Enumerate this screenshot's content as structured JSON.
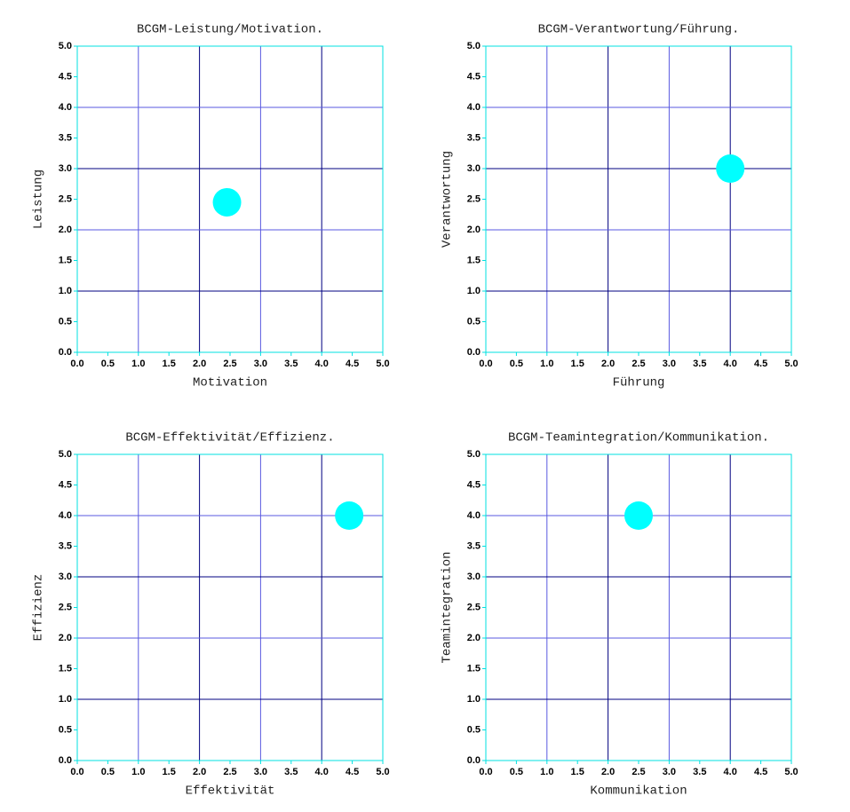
{
  "chart_data": [
    {
      "type": "scatter",
      "title": "BCGM-Leistung/Motivation.",
      "x_label": "Motivation",
      "y_label": "Leistung",
      "x": [
        2.45
      ],
      "values": [
        2.45
      ],
      "color": "#00ffff",
      "frame_color": "#00e0e0",
      "grid": true,
      "xlim": [
        0,
        5
      ],
      "ylim": [
        0,
        5
      ],
      "xticks": [
        {
          "value": 0,
          "label": "0.0"
        },
        {
          "value": 0.5,
          "label": "0.5"
        },
        {
          "value": 1,
          "label": "1.0"
        },
        {
          "value": 1.5,
          "label": "1.5"
        },
        {
          "value": 2,
          "label": "2.0"
        },
        {
          "value": 2.5,
          "label": "2.5"
        },
        {
          "value": 3,
          "label": "3.0"
        },
        {
          "value": 3.5,
          "label": "3.5"
        },
        {
          "value": 4,
          "label": "4.0"
        },
        {
          "value": 4.5,
          "label": "4.5"
        },
        {
          "value": 5,
          "label": "5.0"
        }
      ],
      "yticks": [
        {
          "value": 0,
          "label": "0.0"
        },
        {
          "value": 0.5,
          "label": "0.5"
        },
        {
          "value": 1,
          "label": "1.0"
        },
        {
          "value": 1.5,
          "label": "1.5"
        },
        {
          "value": 2,
          "label": "2.0"
        },
        {
          "value": 2.5,
          "label": "2.5"
        },
        {
          "value": 3,
          "label": "3.0"
        },
        {
          "value": 3.5,
          "label": "3.5"
        },
        {
          "value": 4,
          "label": "4.0"
        },
        {
          "value": 4.5,
          "label": "4.5"
        },
        {
          "value": 5,
          "label": "5.0"
        }
      ]
    },
    {
      "type": "scatter",
      "title": "BCGM-Verantwortung/Führung.",
      "x_label": "Führung",
      "y_label": "Verantwortung",
      "x": [
        4.0
      ],
      "values": [
        3.0
      ],
      "color": "#00ffff",
      "frame_color": "#00e0e0",
      "grid": true,
      "xlim": [
        0,
        5
      ],
      "ylim": [
        0,
        5
      ],
      "xticks": [
        {
          "value": 0,
          "label": "0.0"
        },
        {
          "value": 0.5,
          "label": "0.5"
        },
        {
          "value": 1,
          "label": "1.0"
        },
        {
          "value": 1.5,
          "label": "1.5"
        },
        {
          "value": 2,
          "label": "2.0"
        },
        {
          "value": 2.5,
          "label": "2.5"
        },
        {
          "value": 3,
          "label": "3.0"
        },
        {
          "value": 3.5,
          "label": "3.5"
        },
        {
          "value": 4,
          "label": "4.0"
        },
        {
          "value": 4.5,
          "label": "4.5"
        },
        {
          "value": 5,
          "label": "5.0"
        }
      ],
      "yticks": [
        {
          "value": 0,
          "label": "0.0"
        },
        {
          "value": 0.5,
          "label": "0.5"
        },
        {
          "value": 1,
          "label": "1.0"
        },
        {
          "value": 1.5,
          "label": "1.5"
        },
        {
          "value": 2,
          "label": "2.0"
        },
        {
          "value": 2.5,
          "label": "2.5"
        },
        {
          "value": 3,
          "label": "3.0"
        },
        {
          "value": 3.5,
          "label": "3.5"
        },
        {
          "value": 4,
          "label": "4.0"
        },
        {
          "value": 4.5,
          "label": "4.5"
        },
        {
          "value": 5,
          "label": "5.0"
        }
      ]
    },
    {
      "type": "scatter",
      "title": "BCGM-Effektivität/Effizienz.",
      "x_label": "Effektivität",
      "y_label": "Effizienz",
      "x": [
        4.45
      ],
      "values": [
        4.0
      ],
      "color": "#00ffff",
      "frame_color": "#00e0e0",
      "grid": true,
      "xlim": [
        0,
        5
      ],
      "ylim": [
        0,
        5
      ],
      "xticks": [
        {
          "value": 0,
          "label": "0.0"
        },
        {
          "value": 0.5,
          "label": "0.5"
        },
        {
          "value": 1,
          "label": "1.0"
        },
        {
          "value": 1.5,
          "label": "1.5"
        },
        {
          "value": 2,
          "label": "2.0"
        },
        {
          "value": 2.5,
          "label": "2.5"
        },
        {
          "value": 3,
          "label": "3.0"
        },
        {
          "value": 3.5,
          "label": "3.5"
        },
        {
          "value": 4,
          "label": "4.0"
        },
        {
          "value": 4.5,
          "label": "4.5"
        },
        {
          "value": 5,
          "label": "5.0"
        }
      ],
      "yticks": [
        {
          "value": 0,
          "label": "0.0"
        },
        {
          "value": 0.5,
          "label": "0.5"
        },
        {
          "value": 1,
          "label": "1.0"
        },
        {
          "value": 1.5,
          "label": "1.5"
        },
        {
          "value": 2,
          "label": "2.0"
        },
        {
          "value": 2.5,
          "label": "2.5"
        },
        {
          "value": 3,
          "label": "3.0"
        },
        {
          "value": 3.5,
          "label": "3.5"
        },
        {
          "value": 4,
          "label": "4.0"
        },
        {
          "value": 4.5,
          "label": "4.5"
        },
        {
          "value": 5,
          "label": "5.0"
        }
      ]
    },
    {
      "type": "scatter",
      "title": "BCGM-Teamintegration/Kommunikation.",
      "x_label": "Kommunikation",
      "y_label": "Teamintegration",
      "x": [
        2.5
      ],
      "values": [
        4.0
      ],
      "color": "#00ffff",
      "frame_color": "#00e0e0",
      "grid": true,
      "xlim": [
        0,
        5
      ],
      "ylim": [
        0,
        5
      ],
      "xticks": [
        {
          "value": 0,
          "label": "0.0"
        },
        {
          "value": 0.5,
          "label": "0.5"
        },
        {
          "value": 1,
          "label": "1.0"
        },
        {
          "value": 1.5,
          "label": "1.5"
        },
        {
          "value": 2,
          "label": "2.0"
        },
        {
          "value": 2.5,
          "label": "2.5"
        },
        {
          "value": 3,
          "label": "3.0"
        },
        {
          "value": 3.5,
          "label": "3.5"
        },
        {
          "value": 4,
          "label": "4.0"
        },
        {
          "value": 4.5,
          "label": "4.5"
        },
        {
          "value": 5,
          "label": "5.0"
        }
      ],
      "yticks": [
        {
          "value": 0,
          "label": "0.0"
        },
        {
          "value": 0.5,
          "label": "0.5"
        },
        {
          "value": 1,
          "label": "1.0"
        },
        {
          "value": 1.5,
          "label": "1.5"
        },
        {
          "value": 2,
          "label": "2.0"
        },
        {
          "value": 2.5,
          "label": "2.5"
        },
        {
          "value": 3,
          "label": "3.0"
        },
        {
          "value": 3.5,
          "label": "3.5"
        },
        {
          "value": 4,
          "label": "4.0"
        },
        {
          "value": 4.5,
          "label": "4.5"
        },
        {
          "value": 5,
          "label": "5.0"
        }
      ]
    }
  ]
}
